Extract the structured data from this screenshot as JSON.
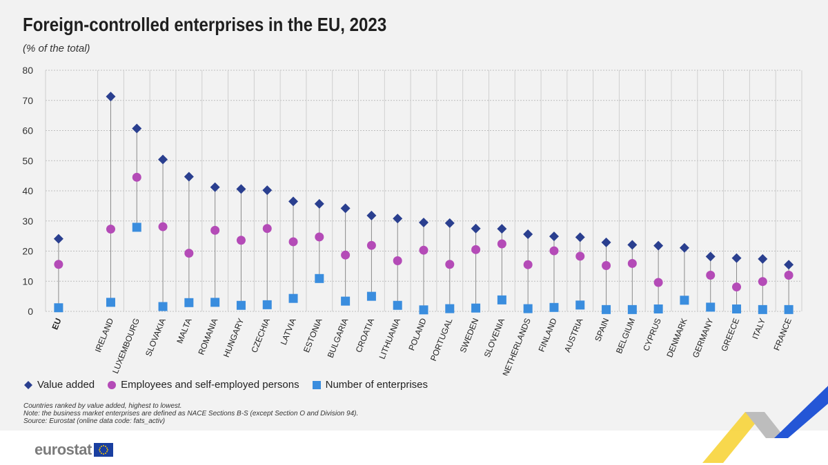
{
  "header": {
    "title": "Foreign-controlled enterprises in the EU, 2023",
    "subtitle": "(% of the total)"
  },
  "legend": {
    "items": [
      {
        "label": "Value added",
        "marker": "diamond",
        "color": "#2a3f8f"
      },
      {
        "label": "Employees and self-employed persons",
        "marker": "circle",
        "color": "#b44bb7"
      },
      {
        "label": "Number of enterprises",
        "marker": "square",
        "color": "#3a8dde"
      }
    ]
  },
  "notes": {
    "line1": "Countries ranked by value added, highest to lowest.",
    "line2": "Note: the business market enterprises are defined as NACE Sections B-S (except Section O and Division 94).",
    "line3": "Source: Eurostat (online data code: fats_activ)"
  },
  "brand": {
    "logo_text": "eurostat",
    "accent_blue": "#1a3fa0",
    "accent_yellow": "#f5c400"
  },
  "chart_data": {
    "type": "scatter",
    "title": "Foreign-controlled enterprises in the EU, 2023",
    "subtitle": "(% of the total)",
    "ylim": [
      0,
      80
    ],
    "yticks": [
      0,
      10,
      20,
      30,
      40,
      50,
      60,
      70,
      80
    ],
    "grid": true,
    "legend_position": "bottom-left",
    "categories": [
      "EU",
      "IRELAND",
      "LUXEMBOURG",
      "SLOVAKIA",
      "MALTA",
      "ROMANIA",
      "HUNGARY",
      "CZECHIA",
      "LATVIA",
      "ESTONIA",
      "BULGARIA",
      "CROATIA",
      "LITHUANIA",
      "POLAND",
      "PORTUGAL",
      "SWEDEN",
      "SLOVENIA",
      "NETHERLANDS",
      "FINLAND",
      "AUSTRIA",
      "SPAIN",
      "BELGIUM",
      "CYPRUS",
      "DENMARK",
      "GERMANY",
      "GREECE",
      "ITALY",
      "FRANCE"
    ],
    "series": [
      {
        "name": "Value added",
        "marker": "diamond",
        "color": "#2a3f8f",
        "values": [
          24.1,
          71.3,
          60.7,
          50.4,
          44.7,
          41.2,
          40.6,
          40.2,
          36.5,
          35.7,
          34.2,
          31.8,
          30.8,
          29.5,
          29.3,
          27.5,
          27.4,
          25.6,
          24.9,
          24.6,
          22.9,
          22.1,
          21.8,
          21.1,
          18.2,
          17.7,
          17.4,
          15.5
        ]
      },
      {
        "name": "Employees and self-employed persons",
        "marker": "circle",
        "color": "#b44bb7",
        "values": [
          15.6,
          27.3,
          44.5,
          28.1,
          19.3,
          26.9,
          23.6,
          27.5,
          23.1,
          24.7,
          18.7,
          21.9,
          16.8,
          20.3,
          15.6,
          20.5,
          22.4,
          15.5,
          20.1,
          18.3,
          15.2,
          15.9,
          9.6,
          null,
          12.0,
          8.1,
          9.9,
          12.0
        ]
      },
      {
        "name": "Number of enterprises",
        "marker": "square",
        "color": "#3a8dde",
        "values": [
          1.2,
          3.0,
          27.9,
          1.6,
          2.9,
          3.0,
          2.0,
          2.2,
          4.3,
          10.9,
          3.4,
          5.0,
          2.0,
          0.5,
          0.9,
          1.1,
          3.8,
          0.9,
          1.3,
          2.1,
          0.6,
          0.6,
          0.8,
          3.7,
          1.4,
          0.8,
          0.6,
          0.6
        ]
      }
    ]
  }
}
